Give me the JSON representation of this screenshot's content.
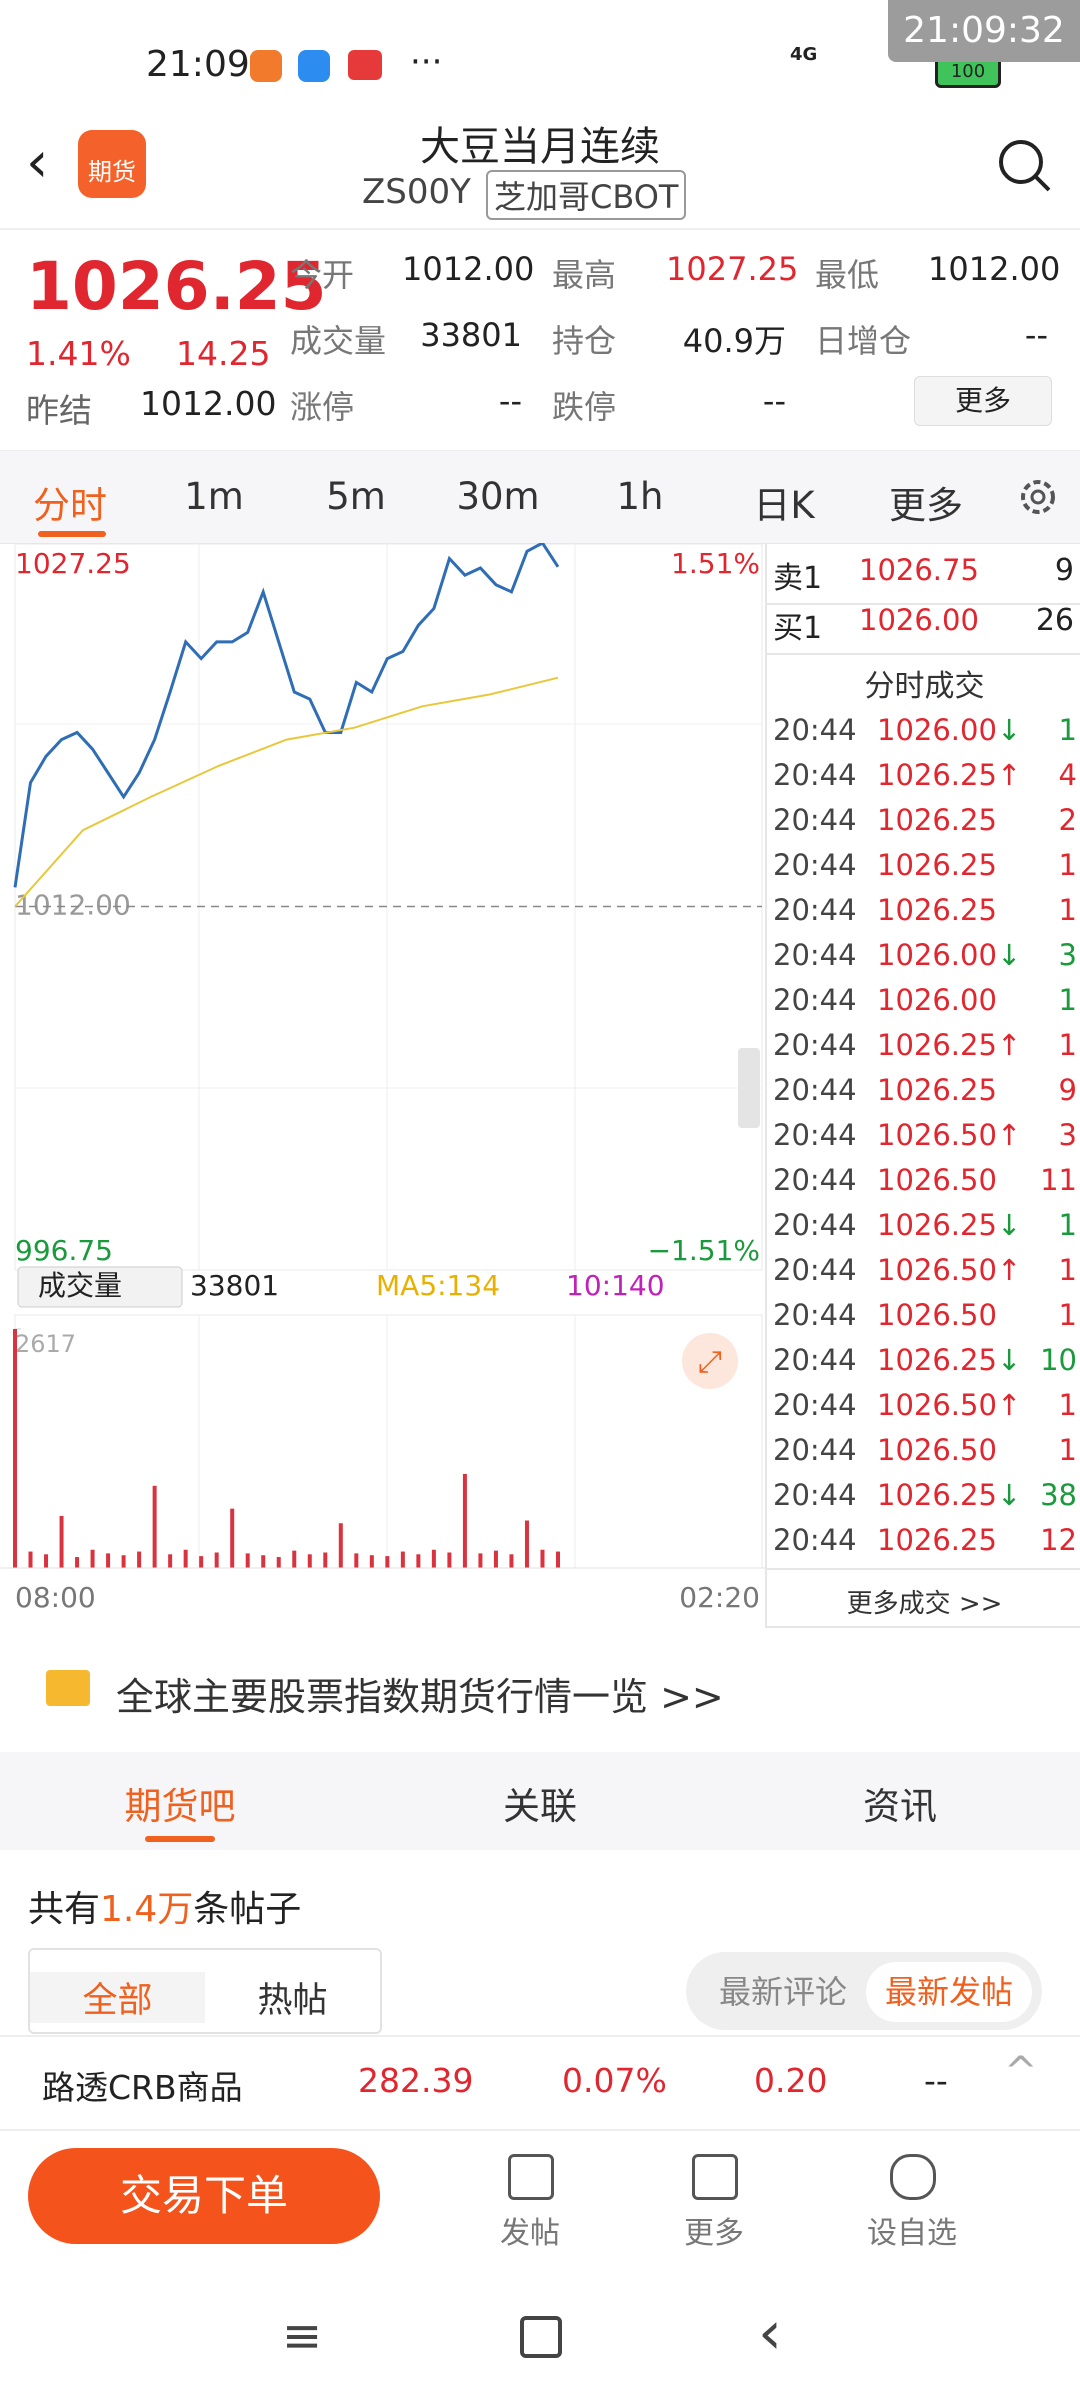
{
  "status": {
    "time": "21:09",
    "signal": "4G",
    "battery": "100",
    "clock": "21:09:32"
  },
  "header": {
    "title": "大豆当月连续",
    "code": "ZS00Y",
    "exchange": "芝加哥CBOT",
    "logo": "期货"
  },
  "quote": {
    "price": "1026.25",
    "pct": "1.41%",
    "change": "14.25",
    "prev_label": "昨结",
    "prev": "1012.00",
    "fields": [
      [
        "今开",
        "1012.00"
      ],
      [
        "最高",
        "1027.25"
      ],
      [
        "最低",
        "1012.00"
      ],
      [
        "成交量",
        "33801"
      ],
      [
        "持仓",
        "40.9万"
      ],
      [
        "日增仓",
        "--"
      ],
      [
        "涨停",
        "--"
      ],
      [
        "跌停",
        "--"
      ]
    ],
    "more": "更多"
  },
  "tabs": [
    "分时",
    "1m",
    "5m",
    "30m",
    "1h",
    "日K",
    "更多"
  ],
  "chart_data": [
    {
      "type": "line",
      "ylim": [
        996.75,
        1027.25
      ],
      "yticks": [
        {
          "value": 1027.25,
          "label": "1027.25"
        },
        {
          "value": 1012,
          "label": "1012.00"
        },
        {
          "value": 996.75,
          "label": "996.75"
        }
      ],
      "pct_labels": [
        "1.51%",
        "−1.51%"
      ],
      "x_labels": [
        "08:00",
        "02:20"
      ],
      "series": [
        {
          "color": "#2f6db5",
          "values": [
            1012.8,
            1017.2,
            1018.3,
            1019,
            1019.3,
            1018.6,
            1017.6,
            1016.6,
            1017.6,
            1019,
            1021,
            1023.1,
            1022.4,
            1023.1,
            1023.1,
            1023.5,
            1025.2,
            1023.1,
            1021,
            1020.7,
            1019.3,
            1019.3,
            1021.4,
            1021,
            1022.4,
            1022.7,
            1023.8,
            1024.5,
            1026.6,
            1025.9,
            1026.2,
            1025.5,
            1025.2,
            1026.9,
            1027.25,
            1026.25
          ]
        },
        {
          "color": "#e8c83a",
          "values": [
            1012,
            1015.2,
            1016.6,
            1017.9,
            1019,
            1019.5,
            1020.4,
            1020.9,
            1021.6
          ]
        }
      ]
    },
    {
      "type": "bar",
      "label": "成交量",
      "total": "33801",
      "ma5": "MA5:134",
      "ma10": "10:140",
      "ylim": [
        0,
        2617
      ],
      "yticks": [
        2617
      ],
      "color": "#d9333f",
      "values": [
        2617,
        180,
        150,
        570,
        120,
        200,
        160,
        140,
        180,
        900,
        150,
        200,
        130,
        170,
        650,
        160,
        140,
        120,
        190,
        150,
        170,
        490,
        160,
        140,
        130,
        180,
        150,
        200,
        170,
        1030,
        160,
        190,
        150,
        520,
        200,
        180
      ]
    }
  ],
  "orderbook": {
    "ask": [
      "卖1",
      "1026.75",
      "9"
    ],
    "bid": [
      "买1",
      "1026.00",
      "26"
    ],
    "trades_title": "分时成交",
    "more": "更多成交 >>",
    "trades": [
      {
        "time": "20:44",
        "price": "1026.00",
        "arrow": "↓",
        "qty": "1",
        "color": "green"
      },
      {
        "time": "20:44",
        "price": "1026.25",
        "arrow": "↑",
        "qty": "4",
        "color": "red"
      },
      {
        "time": "20:44",
        "price": "1026.25",
        "qty": "2",
        "color": "red"
      },
      {
        "time": "20:44",
        "price": "1026.25",
        "qty": "1",
        "color": "red"
      },
      {
        "time": "20:44",
        "price": "1026.25",
        "qty": "1",
        "color": "red"
      },
      {
        "time": "20:44",
        "price": "1026.00",
        "arrow": "↓",
        "qty": "3",
        "color": "green"
      },
      {
        "time": "20:44",
        "price": "1026.00",
        "qty": "1",
        "color": "green"
      },
      {
        "time": "20:44",
        "price": "1026.25",
        "arrow": "↑",
        "qty": "1",
        "color": "red"
      },
      {
        "time": "20:44",
        "price": "1026.25",
        "qty": "9",
        "color": "red"
      },
      {
        "time": "20:44",
        "price": "1026.50",
        "arrow": "↑",
        "qty": "3",
        "color": "red"
      },
      {
        "time": "20:44",
        "price": "1026.50",
        "qty": "11",
        "color": "red"
      },
      {
        "time": "20:44",
        "price": "1026.25",
        "arrow": "↓",
        "qty": "1",
        "color": "green"
      },
      {
        "time": "20:44",
        "price": "1026.50",
        "arrow": "↑",
        "qty": "1",
        "color": "red"
      },
      {
        "time": "20:44",
        "price": "1026.50",
        "qty": "1",
        "color": "red"
      },
      {
        "time": "20:44",
        "price": "1026.25",
        "arrow": "↓",
        "qty": "10",
        "color": "green"
      },
      {
        "time": "20:44",
        "price": "1026.50",
        "arrow": "↑",
        "qty": "1",
        "color": "red"
      },
      {
        "time": "20:44",
        "price": "1026.50",
        "qty": "1",
        "color": "red"
      },
      {
        "time": "20:44",
        "price": "1026.25",
        "arrow": "↓",
        "qty": "38",
        "color": "green"
      },
      {
        "time": "20:44",
        "price": "1026.25",
        "qty": "12",
        "color": "red"
      }
    ]
  },
  "banner": "全球主要股票指数期货行情一览 >>",
  "community": {
    "tabs": [
      "期货吧",
      "关联",
      "资讯"
    ],
    "count_pre": "共有",
    "count": "1.4万",
    "count_post": "条帖子",
    "filters": [
      "全部",
      "热帖"
    ],
    "sort": [
      "最新评论",
      "最新发帖"
    ]
  },
  "ticker": {
    "name": "路透CRB商品",
    "price": "282.39",
    "pct": "0.07%",
    "change": "0.20",
    "extra": "--"
  },
  "actions": {
    "order": "交易下单",
    "items": [
      "发帖",
      "更多",
      "设自选"
    ]
  }
}
